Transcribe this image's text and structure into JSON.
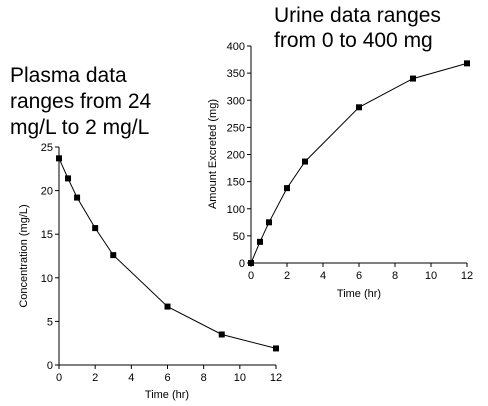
{
  "annotations": {
    "plasma": [
      "Plasma data",
      "ranges from 24",
      "mg/L to 2 mg/L"
    ],
    "urine": [
      "Urine data ranges",
      "from 0 to 400 mg"
    ]
  },
  "chart_data": [
    {
      "id": "plasma",
      "type": "line",
      "xlabel": "Time (hr)",
      "ylabel": "Concentration (mg/L)",
      "xlim": [
        0,
        12
      ],
      "ylim": [
        0,
        25
      ],
      "xticks": [
        0,
        2,
        4,
        6,
        8,
        10,
        12
      ],
      "yticks": [
        0,
        5,
        10,
        15,
        20,
        25
      ],
      "grid": false,
      "marker": "square",
      "x": [
        0,
        0.5,
        1,
        2,
        3,
        6,
        9,
        12
      ],
      "y": [
        23.7,
        21.4,
        19.2,
        15.7,
        12.6,
        6.7,
        3.5,
        1.9
      ]
    },
    {
      "id": "urine",
      "type": "line",
      "xlabel": "Time (hr)",
      "ylabel": "Amount Excreted (mg)",
      "xlim": [
        0,
        12
      ],
      "ylim": [
        0,
        400
      ],
      "xticks": [
        0,
        2,
        4,
        6,
        8,
        10,
        12
      ],
      "yticks": [
        0,
        50,
        100,
        150,
        200,
        250,
        300,
        350,
        400
      ],
      "grid": false,
      "marker": "square",
      "x": [
        0,
        0.5,
        1,
        2,
        3,
        6,
        9,
        12
      ],
      "y": [
        0,
        39,
        75,
        138,
        187,
        287,
        340,
        368
      ]
    }
  ]
}
